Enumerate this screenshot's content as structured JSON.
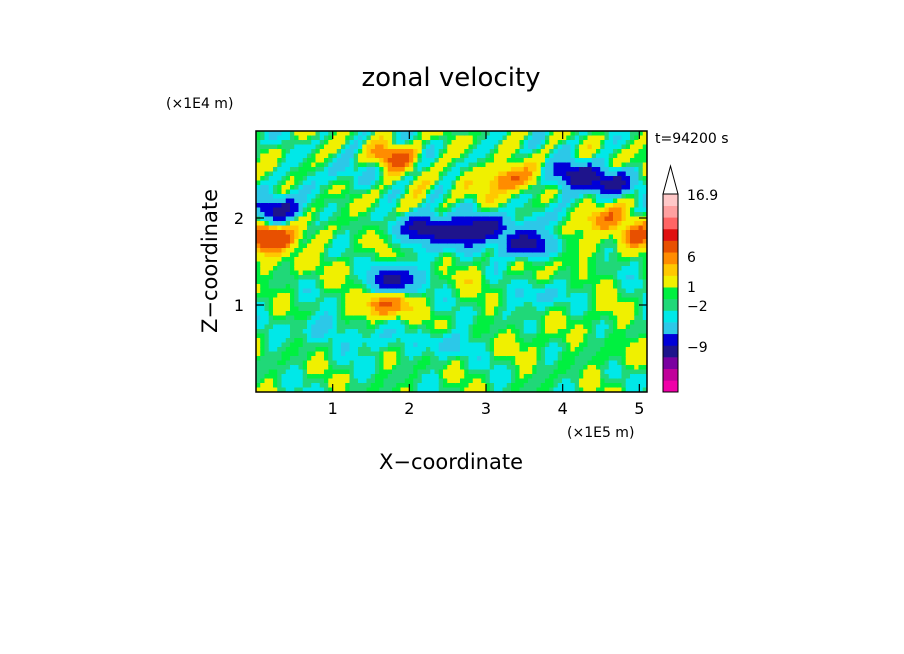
{
  "chart_data": {
    "type": "heatmap",
    "title": "zonal velocity",
    "xlabel": "X−coordinate",
    "ylabel": "Z−coordinate",
    "x_unit": "(×1E5 m)",
    "y_unit": "(×1E4 m)",
    "time_label": "t=94200 s",
    "xlim": [
      0,
      5.1
    ],
    "ylim": [
      0,
      3.0
    ],
    "x_ticks": [
      1,
      2,
      3,
      4,
      5
    ],
    "x_tick_labels": [
      "1",
      "2",
      "3",
      "4",
      "5"
    ],
    "y_ticks": [
      1,
      2
    ],
    "y_tick_labels": [
      "1",
      "2"
    ],
    "colorbar": {
      "extend": "max",
      "colors": [
        "#f000a8",
        "#c0009a",
        "#7a00a0",
        "#1e148c",
        "#0000d8",
        "#2cc8e8",
        "#00e8e8",
        "#20d878",
        "#00f040",
        "#f0f000",
        "#ffc800",
        "#ff8c00",
        "#e85000",
        "#e01010",
        "#ff6464",
        "#ffa0a0",
        "#ffc8c8"
      ],
      "labels": [
        {
          "text": "16.9",
          "level": 16.9
        },
        {
          "text": "6",
          "level": 6
        },
        {
          "text": "1",
          "level": 1
        },
        {
          "text": "−2",
          "level": -2
        },
        {
          "text": "−9",
          "level": -9
        }
      ]
    },
    "field_palette": {
      "positive": [
        "#f0f000",
        "#ffc800",
        "#ff8c00"
      ],
      "neutral": [
        "#00f040",
        "#20d878"
      ],
      "negative": [
        "#00e8e8",
        "#1e148c",
        "#0000d8"
      ]
    },
    "features": [
      {
        "x": 0.1,
        "z": 1.8,
        "value": 6
      },
      {
        "x": 0.25,
        "z": 1.75,
        "value": 6
      },
      {
        "x": 0.3,
        "z": 2.1,
        "value": -9
      },
      {
        "x": 5.0,
        "z": 1.8,
        "value": 6
      },
      {
        "x": 1.8,
        "z": 2.7,
        "value": 6
      },
      {
        "x": 3.3,
        "z": 2.45,
        "value": 6
      },
      {
        "x": 3.0,
        "z": 2.3,
        "value": 1
      },
      {
        "x": 2.2,
        "z": 2.35,
        "value": 1
      },
      {
        "x": 2.2,
        "z": 1.9,
        "value": -9
      },
      {
        "x": 2.6,
        "z": 1.8,
        "value": -9
      },
      {
        "x": 3.0,
        "z": 1.9,
        "value": -9
      },
      {
        "x": 3.5,
        "z": 1.7,
        "value": -9
      },
      {
        "x": 1.8,
        "z": 1.3,
        "value": -9
      },
      {
        "x": 4.15,
        "z": 2.5,
        "value": -9
      },
      {
        "x": 4.6,
        "z": 2.4,
        "value": -9
      },
      {
        "x": 4.5,
        "z": 2.0,
        "value": 6
      },
      {
        "x": 1.1,
        "z": 2.5,
        "value": -2
      },
      {
        "x": 0.5,
        "z": 1.5,
        "value": 1
      },
      {
        "x": 1.2,
        "z": 1.4,
        "value": 1
      },
      {
        "x": 0.8,
        "z": 0.75,
        "value": -2
      },
      {
        "x": 1.5,
        "z": 0.6,
        "value": -2
      },
      {
        "x": 2.5,
        "z": 0.55,
        "value": -2
      },
      {
        "x": 3.6,
        "z": 0.6,
        "value": 1
      },
      {
        "x": 2.4,
        "z": 0.25,
        "value": 0
      },
      {
        "x": 0.5,
        "z": 0.4,
        "value": 0
      },
      {
        "x": 4.5,
        "z": 0.9,
        "value": 1
      },
      {
        "x": 4.8,
        "z": 0.4,
        "value": 1
      },
      {
        "x": 1.7,
        "z": 1.0,
        "value": 6
      },
      {
        "x": 3.7,
        "z": 1.1,
        "value": -2
      },
      {
        "x": 4.0,
        "z": 1.5,
        "value": 1
      },
      {
        "x": 2.8,
        "z": 1.3,
        "value": 1
      },
      {
        "x": 0.9,
        "z": 2.1,
        "value": 1
      },
      {
        "x": 3.9,
        "z": 2.0,
        "value": -2
      },
      {
        "x": 4.9,
        "z": 2.6,
        "value": 1
      }
    ]
  }
}
